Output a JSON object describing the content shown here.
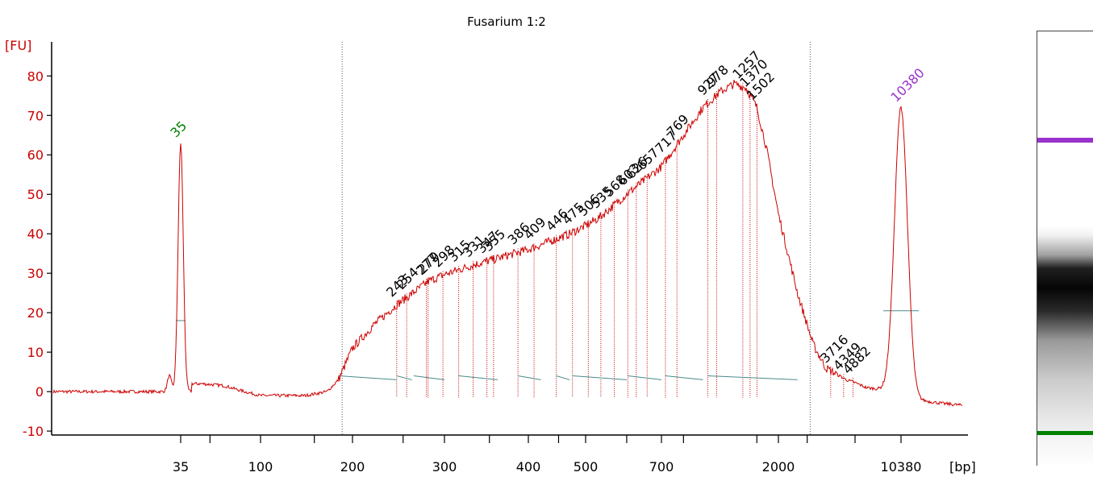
{
  "chart_data": {
    "type": "line",
    "title": "Fusarium 1:2",
    "ylabel": "[FU]",
    "xunit": "[bp]",
    "ylim": [
      -11,
      87
    ],
    "yticks": [
      -10,
      0,
      10,
      20,
      30,
      40,
      50,
      60,
      70,
      80
    ],
    "xticks": [
      {
        "label": "35",
        "bp": 35
      },
      {
        "label": "100",
        "bp": 100
      },
      {
        "label": "200",
        "bp": 200
      },
      {
        "label": "300",
        "bp": 300
      },
      {
        "label": "400",
        "bp": 400
      },
      {
        "label": "500",
        "bp": 500
      },
      {
        "label": "700",
        "bp": 700
      },
      {
        "label": "2000",
        "bp": 2000
      },
      {
        "label": "10380",
        "bp": 10380
      }
    ],
    "marker_peaks": [
      {
        "label": "35",
        "bp": 35,
        "fu": 63,
        "color": "#008000"
      },
      {
        "label": "10380",
        "bp": 10380,
        "fu": 72,
        "color": "#9932CC"
      }
    ],
    "smear_range_bp": [
      185,
      2900
    ],
    "smear_trace": [
      {
        "bp": 45,
        "fu": 2
      },
      {
        "bp": 60,
        "fu": 1.5
      },
      {
        "bp": 80,
        "fu": 0
      },
      {
        "bp": 100,
        "fu": -1
      },
      {
        "bp": 140,
        "fu": -1
      },
      {
        "bp": 165,
        "fu": 0
      },
      {
        "bp": 180,
        "fu": 3
      },
      {
        "bp": 200,
        "fu": 11
      },
      {
        "bp": 220,
        "fu": 17
      },
      {
        "bp": 243,
        "fu": 22
      },
      {
        "bp": 280,
        "fu": 28
      },
      {
        "bp": 330,
        "fu": 32
      },
      {
        "bp": 400,
        "fu": 36
      },
      {
        "bp": 470,
        "fu": 40
      },
      {
        "bp": 530,
        "fu": 44
      },
      {
        "bp": 600,
        "fu": 50
      },
      {
        "bp": 700,
        "fu": 57
      },
      {
        "bp": 800,
        "fu": 65
      },
      {
        "bp": 900,
        "fu": 72
      },
      {
        "bp": 1000,
        "fu": 76
      },
      {
        "bp": 1150,
        "fu": 78
      },
      {
        "bp": 1300,
        "fu": 77
      },
      {
        "bp": 1500,
        "fu": 72
      },
      {
        "bp": 1700,
        "fu": 62
      },
      {
        "bp": 2000,
        "fu": 45
      },
      {
        "bp": 2500,
        "fu": 25
      },
      {
        "bp": 3000,
        "fu": 12
      },
      {
        "bp": 3500,
        "fu": 6
      },
      {
        "bp": 4500,
        "fu": 3
      },
      {
        "bp": 6000,
        "fu": 1
      },
      {
        "bp": 8000,
        "fu": 0.5
      },
      {
        "bp": 9500,
        "fu": 0
      },
      {
        "bp": 12000,
        "fu": -2
      },
      {
        "bp": 16000,
        "fu": -3
      },
      {
        "bp": 20000,
        "fu": -3.5
      }
    ],
    "peak_labels": [
      {
        "label": "243",
        "bp": 243
      },
      {
        "label": "254",
        "bp": 254
      },
      {
        "label": "277",
        "bp": 277
      },
      {
        "label": "279",
        "bp": 279
      },
      {
        "label": "298",
        "bp": 298
      },
      {
        "label": "315",
        "bp": 315
      },
      {
        "label": "331",
        "bp": 331
      },
      {
        "label": "347",
        "bp": 347
      },
      {
        "label": "355",
        "bp": 355
      },
      {
        "label": "386",
        "bp": 386
      },
      {
        "label": "409",
        "bp": 409
      },
      {
        "label": "446",
        "bp": 446
      },
      {
        "label": "475",
        "bp": 475
      },
      {
        "label": "506",
        "bp": 506
      },
      {
        "label": "535",
        "bp": 535
      },
      {
        "label": "568",
        "bp": 568
      },
      {
        "label": "603",
        "bp": 603
      },
      {
        "label": "626",
        "bp": 626
      },
      {
        "label": "657",
        "bp": 657
      },
      {
        "label": "717",
        "bp": 717
      },
      {
        "label": "769",
        "bp": 769
      },
      {
        "label": "927",
        "bp": 927
      },
      {
        "label": "978",
        "bp": 978
      },
      {
        "label": "1257",
        "bp": 1257
      },
      {
        "label": "1370",
        "bp": 1370
      },
      {
        "label": "1502",
        "bp": 1502
      },
      {
        "label": "3716",
        "bp": 3716
      },
      {
        "label": "4349",
        "bp": 4349
      },
      {
        "label": "4882",
        "bp": 4882
      }
    ],
    "grid": false,
    "legend": "none"
  },
  "colors": {
    "axis": "#cc0000",
    "trace": "#cc0000",
    "label_text": "#000000",
    "baseline_segment": "#4a8a8a",
    "gel_top_marker": "#9932CC",
    "gel_bottom_marker": "#008000"
  },
  "gel": {
    "name": "virtual gel lane"
  }
}
